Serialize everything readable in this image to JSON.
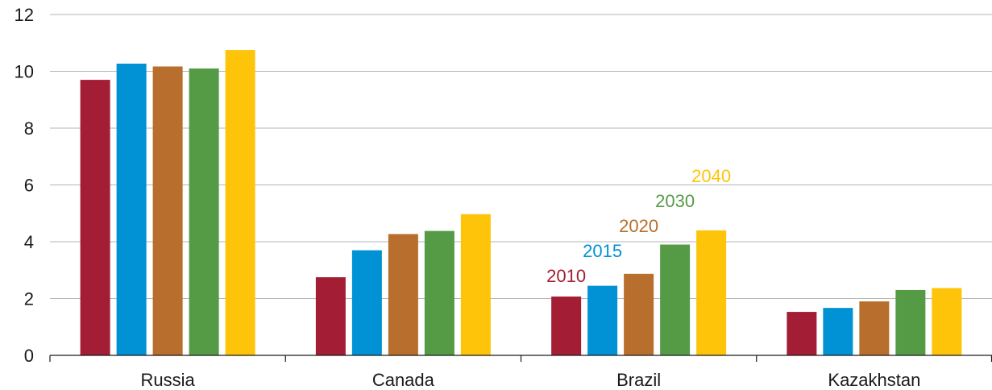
{
  "chart_data": {
    "type": "bar",
    "title": "",
    "xlabel": "",
    "ylabel": "",
    "categories": [
      "Russia",
      "Canada",
      "Brazil",
      "Kazakhstan"
    ],
    "ylim": [
      0,
      12
    ],
    "yticks": [
      0,
      2,
      4,
      6,
      8,
      10,
      12
    ],
    "grid": true,
    "series": [
      {
        "name": "2010",
        "color": "#a31d34",
        "values": [
          9.7,
          2.75,
          2.07,
          1.53
        ]
      },
      {
        "name": "2015",
        "color": "#0092d5",
        "values": [
          10.27,
          3.7,
          2.45,
          1.67
        ]
      },
      {
        "name": "2020",
        "color": "#b86e2c",
        "values": [
          10.17,
          4.27,
          2.87,
          1.9
        ]
      },
      {
        "name": "2030",
        "color": "#559b45",
        "values": [
          10.1,
          4.38,
          3.9,
          2.3
        ]
      },
      {
        "name": "2040",
        "color": "#fdc40a",
        "values": [
          10.75,
          4.97,
          4.4,
          2.37
        ]
      }
    ],
    "series_labels_on_category": "Brazil"
  }
}
